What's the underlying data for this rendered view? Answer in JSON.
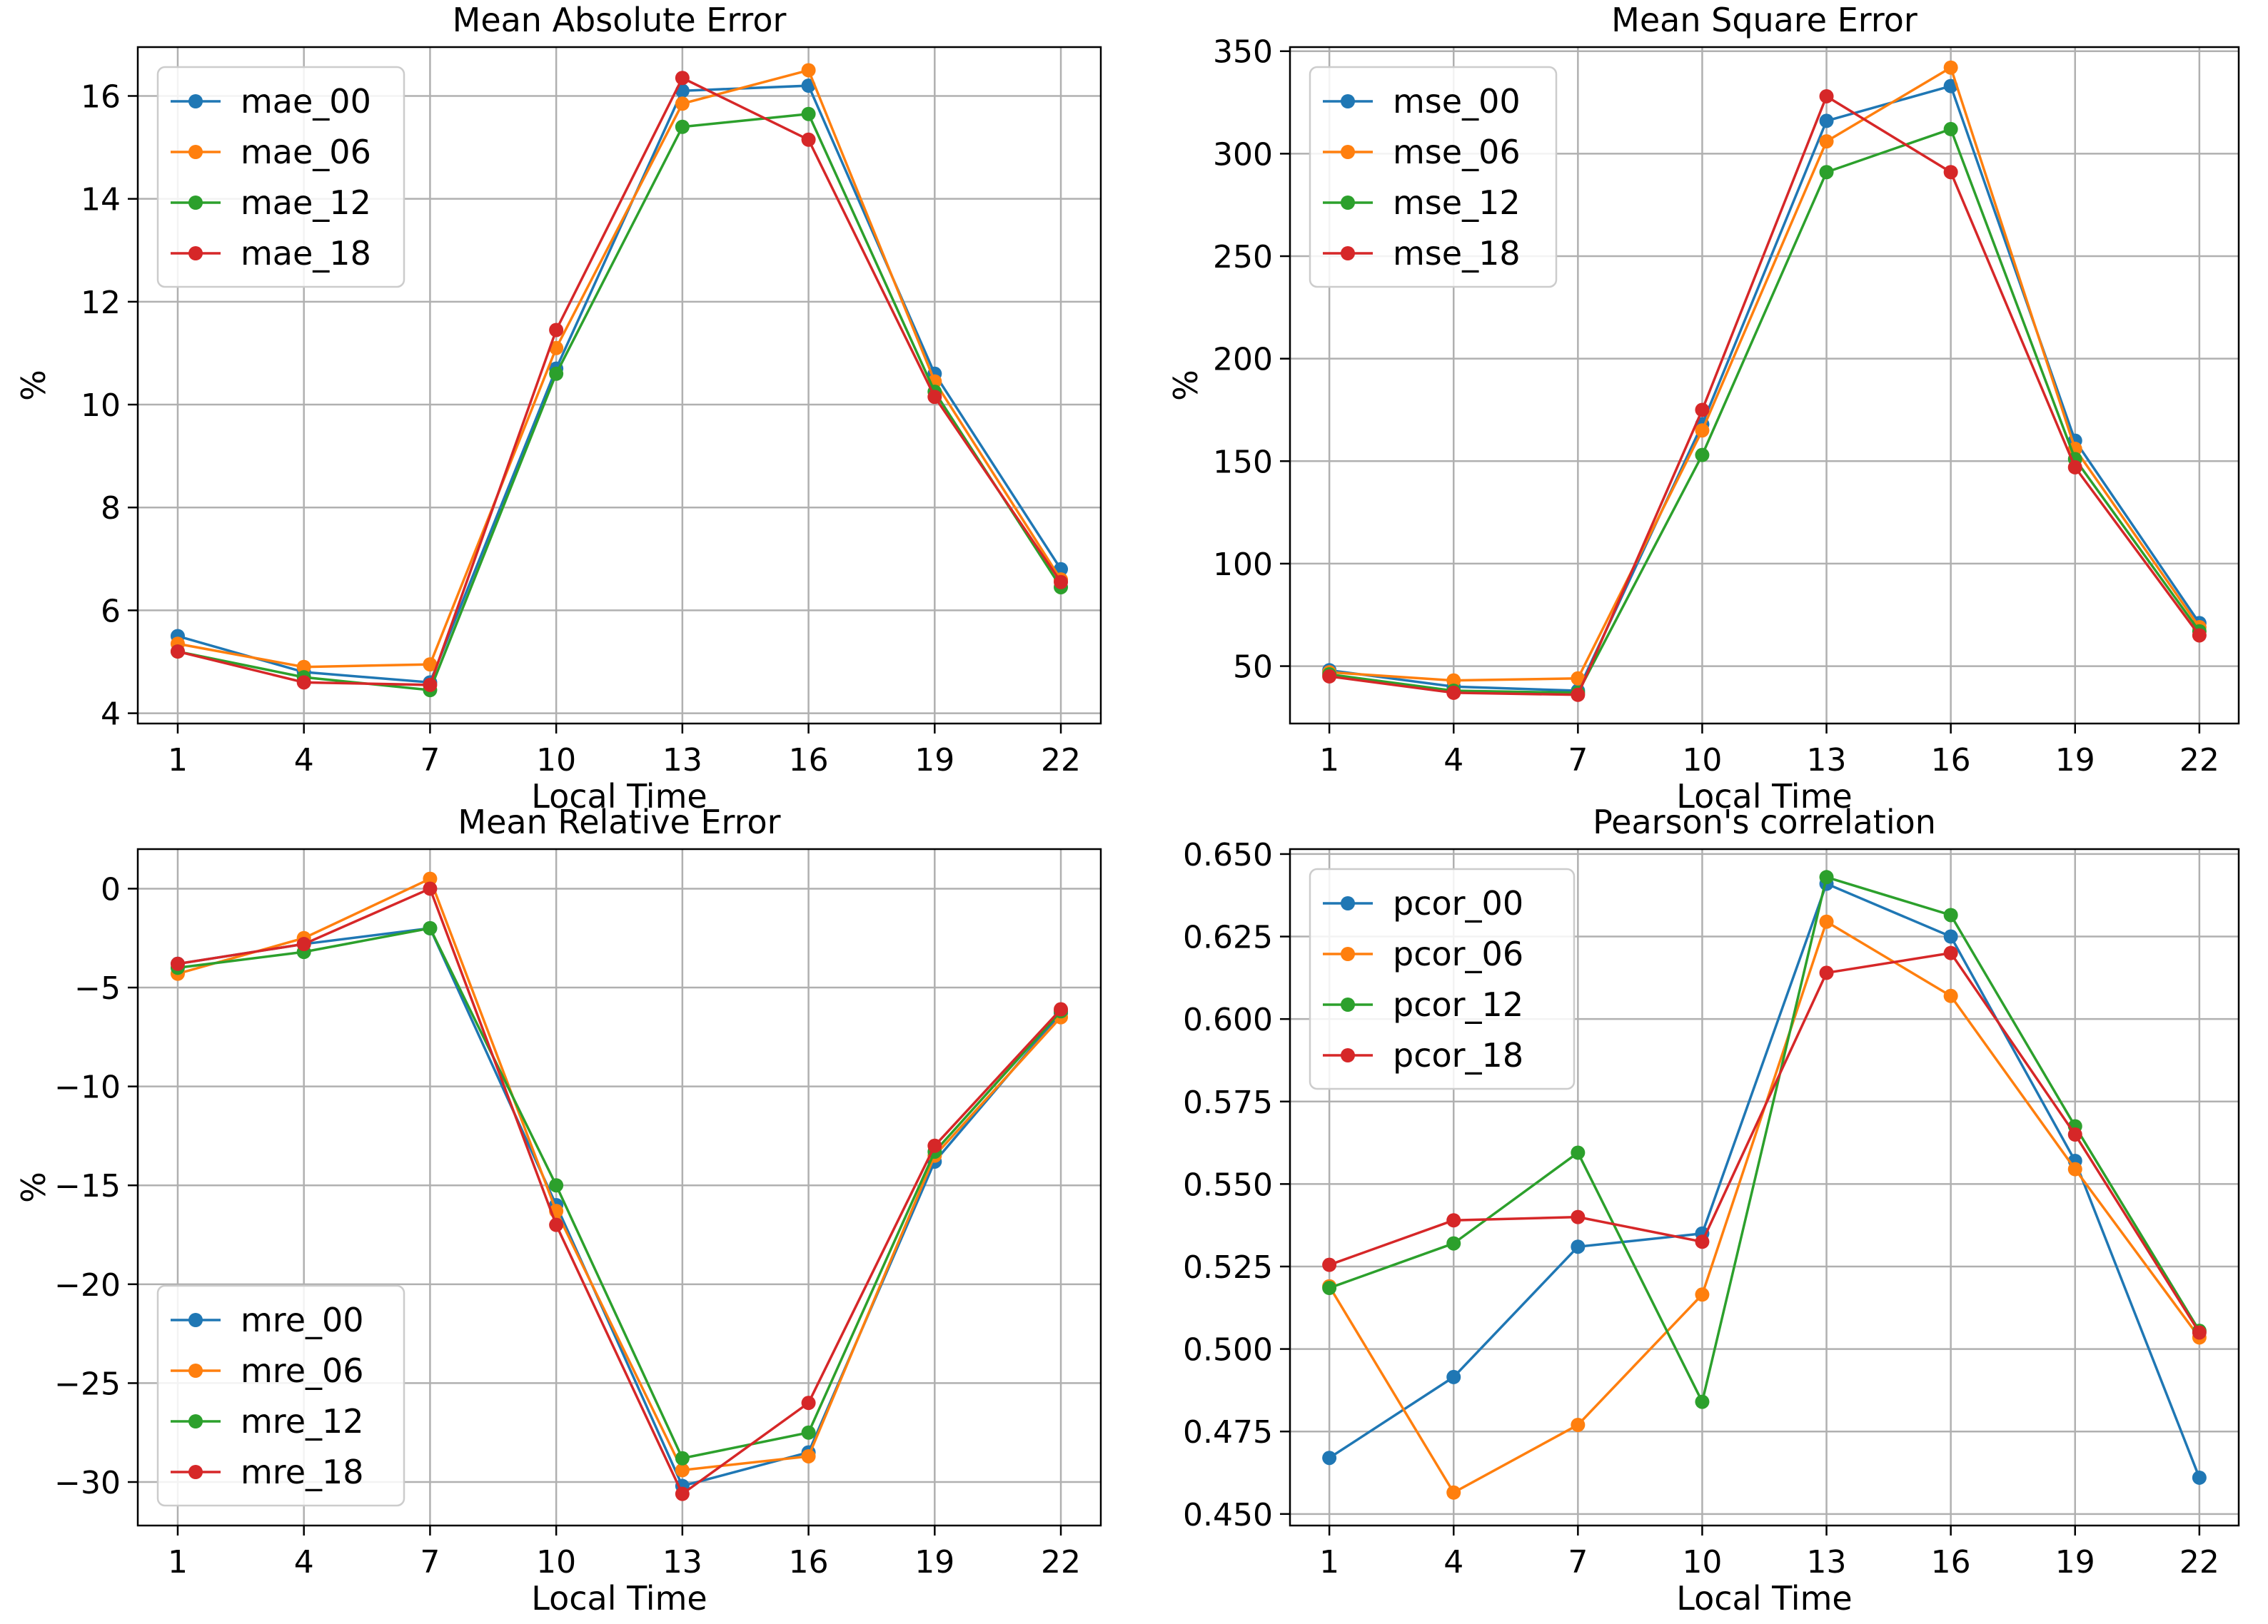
{
  "colors": {
    "s00": "#1f77b4",
    "s06": "#ff7f0e",
    "s12": "#2ca02c",
    "s18": "#d62728"
  },
  "chart_data": [
    {
      "type": "line",
      "title": "Mean Absolute Error",
      "xlabel": "Local Time",
      "ylabel": "%",
      "x": [
        1,
        4,
        7,
        10,
        13,
        16,
        19,
        22
      ],
      "xlim": [
        0.05,
        22.95
      ],
      "ylim": [
        3.8,
        16.95
      ],
      "yticks": [
        4,
        6,
        8,
        10,
        12,
        14,
        16
      ],
      "ytick_labels": [
        "4",
        "6",
        "8",
        "10",
        "12",
        "14",
        "16"
      ],
      "legend_position": "upper-left",
      "series": [
        {
          "name": "mae_00",
          "color": "#1f77b4",
          "values": [
            5.5,
            4.8,
            4.6,
            10.7,
            16.1,
            16.2,
            10.6,
            6.8
          ]
        },
        {
          "name": "mae_06",
          "color": "#ff7f0e",
          "values": [
            5.35,
            4.9,
            4.95,
            11.1,
            15.85,
            16.5,
            10.45,
            6.6
          ]
        },
        {
          "name": "mae_12",
          "color": "#2ca02c",
          "values": [
            5.2,
            4.7,
            4.45,
            10.6,
            15.4,
            15.65,
            10.25,
            6.45
          ]
        },
        {
          "name": "mae_18",
          "color": "#d62728",
          "values": [
            5.2,
            4.6,
            4.55,
            11.45,
            16.35,
            15.15,
            10.15,
            6.55
          ]
        }
      ]
    },
    {
      "type": "line",
      "title": "Mean Square Error",
      "xlabel": "Local Time",
      "ylabel": "%",
      "x": [
        1,
        4,
        7,
        10,
        13,
        16,
        19,
        22
      ],
      "xlim": [
        0.05,
        22.95
      ],
      "ylim": [
        22,
        352
      ],
      "yticks": [
        50,
        100,
        150,
        200,
        250,
        300,
        350
      ],
      "ytick_labels": [
        "50",
        "100",
        "150",
        "200",
        "250",
        "300",
        "350"
      ],
      "legend_position": "upper-left",
      "series": [
        {
          "name": "mse_00",
          "color": "#1f77b4",
          "values": [
            48,
            40,
            38,
            168,
            316,
            333,
            160,
            71
          ]
        },
        {
          "name": "mse_06",
          "color": "#ff7f0e",
          "values": [
            47,
            43,
            44,
            165,
            306,
            342,
            156,
            69
          ]
        },
        {
          "name": "mse_12",
          "color": "#2ca02c",
          "values": [
            46,
            38,
            37,
            153,
            291,
            312,
            151,
            67
          ]
        },
        {
          "name": "mse_18",
          "color": "#d62728",
          "values": [
            45,
            37,
            36,
            175,
            328,
            291,
            147,
            65
          ]
        }
      ]
    },
    {
      "type": "line",
      "title": "Mean Relative Error",
      "xlabel": "Local Time",
      "ylabel": "%",
      "x": [
        1,
        4,
        7,
        10,
        13,
        16,
        19,
        22
      ],
      "xlim": [
        0.05,
        22.95
      ],
      "ylim": [
        -32.2,
        2.0
      ],
      "yticks": [
        0,
        -5,
        -10,
        -15,
        -20,
        -25,
        -30
      ],
      "ytick_labels": [
        "0",
        "−5",
        "−10",
        "−15",
        "−20",
        "−25",
        "−30"
      ],
      "legend_position": "lower-left",
      "series": [
        {
          "name": "mre_00",
          "color": "#1f77b4",
          "values": [
            -3.8,
            -2.8,
            -2.0,
            -16.0,
            -30.2,
            -28.5,
            -13.8,
            -6.3
          ]
        },
        {
          "name": "mre_06",
          "color": "#ff7f0e",
          "values": [
            -4.3,
            -2.5,
            0.5,
            -16.3,
            -29.4,
            -28.7,
            -13.5,
            -6.5
          ]
        },
        {
          "name": "mre_12",
          "color": "#2ca02c",
          "values": [
            -4.0,
            -3.2,
            -2.0,
            -15.0,
            -28.8,
            -27.5,
            -13.3,
            -6.2
          ]
        },
        {
          "name": "mre_18",
          "color": "#d62728",
          "values": [
            -3.8,
            -2.8,
            0.0,
            -17.0,
            -30.6,
            -26.0,
            -13.0,
            -6.1
          ]
        }
      ]
    },
    {
      "type": "line",
      "title": "Pearson's correlation",
      "xlabel": "Local Time",
      "ylabel": "",
      "x": [
        1,
        4,
        7,
        10,
        13,
        16,
        19,
        22
      ],
      "xlim": [
        0.05,
        22.95
      ],
      "ylim": [
        0.4465,
        0.6515
      ],
      "yticks": [
        0.45,
        0.475,
        0.5,
        0.525,
        0.55,
        0.575,
        0.6,
        0.625,
        0.65
      ],
      "ytick_labels": [
        "0.450",
        "0.475",
        "0.500",
        "0.525",
        "0.550",
        "0.575",
        "0.600",
        "0.625",
        "0.650"
      ],
      "legend_position": "upper-left",
      "series": [
        {
          "name": "pcor_00",
          "color": "#1f77b4",
          "values": [
            0.467,
            0.4915,
            0.531,
            0.535,
            0.641,
            0.625,
            0.557,
            0.461
          ]
        },
        {
          "name": "pcor_06",
          "color": "#ff7f0e",
          "values": [
            0.519,
            0.4565,
            0.477,
            0.5165,
            0.6295,
            0.607,
            0.5545,
            0.5035
          ]
        },
        {
          "name": "pcor_12",
          "color": "#2ca02c",
          "values": [
            0.5185,
            0.532,
            0.5595,
            0.484,
            0.643,
            0.6315,
            0.5675,
            0.5055
          ]
        },
        {
          "name": "pcor_18",
          "color": "#d62728",
          "values": [
            0.5255,
            0.539,
            0.54,
            0.5325,
            0.614,
            0.62,
            0.565,
            0.505
          ]
        }
      ]
    }
  ]
}
